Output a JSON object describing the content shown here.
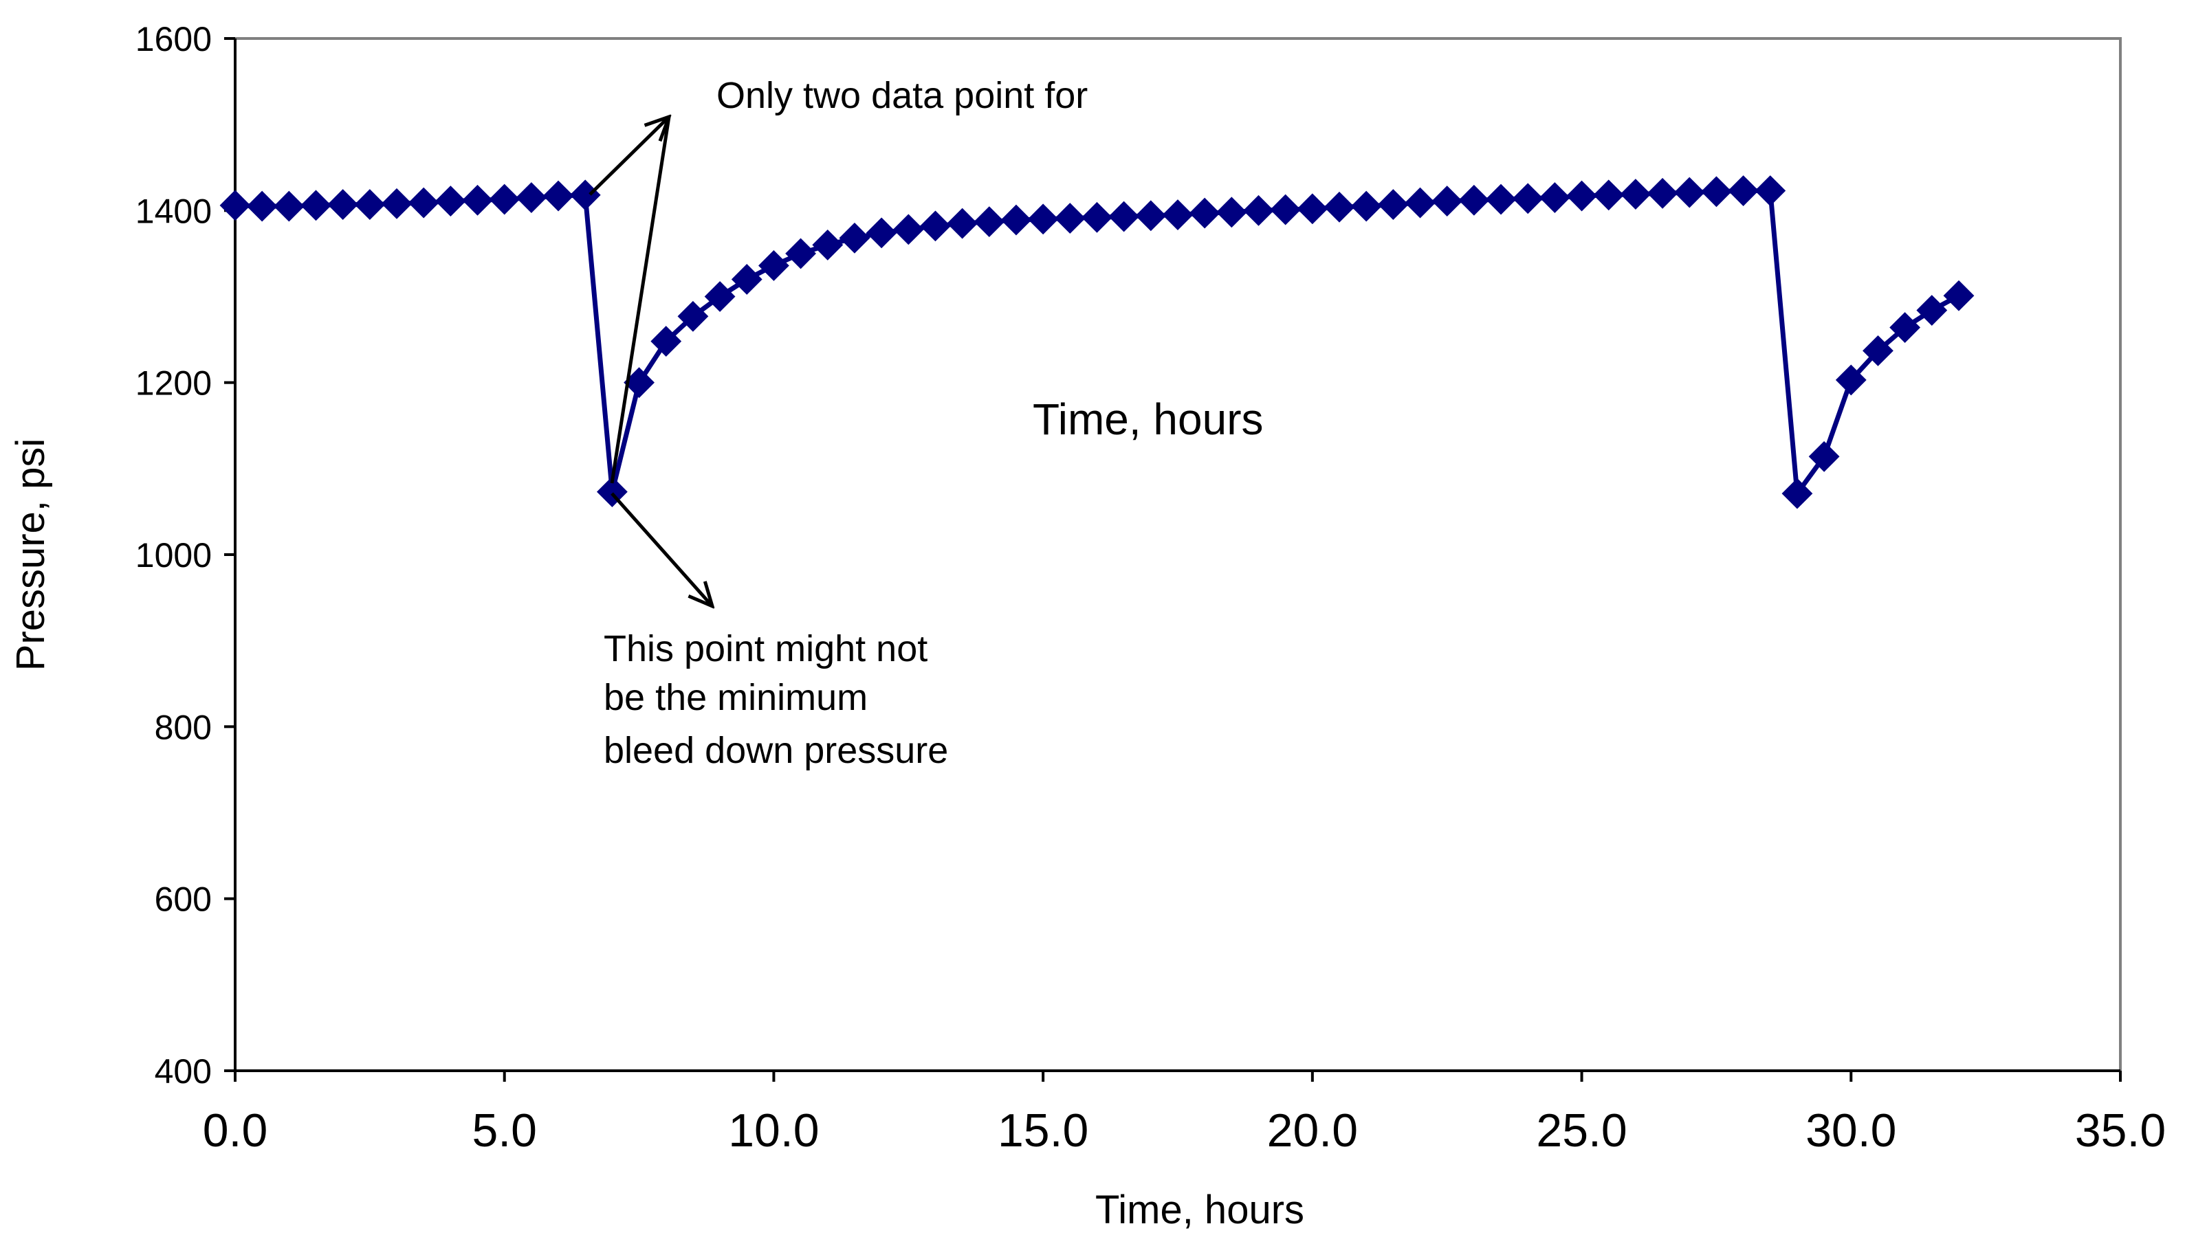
{
  "chart_data": {
    "type": "line",
    "title": "",
    "xlabel": "Time, hours",
    "ylabel": "Pressure, psi",
    "xlim": [
      0,
      35
    ],
    "ylim": [
      400,
      1600
    ],
    "xticks": [
      "0.0",
      "5.0",
      "10.0",
      "15.0",
      "20.0",
      "25.0",
      "30.0",
      "35.0"
    ],
    "yticks": [
      "400",
      "600",
      "800",
      "1000",
      "1200",
      "1400",
      "1600"
    ],
    "grid": false,
    "legend": "none",
    "series": [
      {
        "name": "Pressure",
        "color": "#000080",
        "marker": "diamond",
        "points": [
          [
            0.0,
            1406
          ],
          [
            0.5,
            1405
          ],
          [
            1.0,
            1405
          ],
          [
            1.5,
            1406
          ],
          [
            2.0,
            1407
          ],
          [
            2.5,
            1407
          ],
          [
            3.0,
            1408
          ],
          [
            3.5,
            1409
          ],
          [
            4.0,
            1411
          ],
          [
            4.5,
            1412
          ],
          [
            5.0,
            1413
          ],
          [
            5.5,
            1415
          ],
          [
            6.0,
            1417
          ],
          [
            6.5,
            1418
          ],
          [
            7.0,
            1073
          ],
          [
            7.5,
            1200
          ],
          [
            8.0,
            1248
          ],
          [
            8.5,
            1277
          ],
          [
            9.0,
            1300
          ],
          [
            9.5,
            1320
          ],
          [
            10.0,
            1336
          ],
          [
            10.5,
            1350
          ],
          [
            11.0,
            1360
          ],
          [
            11.5,
            1368
          ],
          [
            12.0,
            1374
          ],
          [
            12.5,
            1378
          ],
          [
            13.0,
            1382
          ],
          [
            13.5,
            1385
          ],
          [
            14.0,
            1387
          ],
          [
            14.5,
            1389
          ],
          [
            15.0,
            1390
          ],
          [
            15.5,
            1391
          ],
          [
            16.0,
            1392
          ],
          [
            16.5,
            1393
          ],
          [
            17.0,
            1394
          ],
          [
            17.5,
            1395
          ],
          [
            18.0,
            1397
          ],
          [
            18.5,
            1398
          ],
          [
            19.0,
            1400
          ],
          [
            19.5,
            1401
          ],
          [
            20.0,
            1402
          ],
          [
            20.5,
            1404
          ],
          [
            21.0,
            1405
          ],
          [
            21.5,
            1407
          ],
          [
            22.0,
            1409
          ],
          [
            22.5,
            1411
          ],
          [
            23.0,
            1412
          ],
          [
            23.5,
            1413
          ],
          [
            24.0,
            1414
          ],
          [
            24.5,
            1415
          ],
          [
            25.0,
            1417
          ],
          [
            25.5,
            1418
          ],
          [
            26.0,
            1419
          ],
          [
            26.5,
            1420
          ],
          [
            27.0,
            1421
          ],
          [
            27.5,
            1422
          ],
          [
            28.0,
            1423
          ],
          [
            28.5,
            1423
          ],
          [
            29.0,
            1071
          ],
          [
            29.5,
            1114
          ],
          [
            30.0,
            1203
          ],
          [
            30.5,
            1237
          ],
          [
            31.0,
            1264
          ],
          [
            31.5,
            1284
          ],
          [
            32.0,
            1301
          ]
        ]
      }
    ],
    "annotations": [
      {
        "id": "two-points",
        "lines": [
          "Only two data point for"
        ]
      },
      {
        "id": "min-point",
        "lines": [
          "This point might not",
          "be the minimum",
          "bleed down pressure"
        ]
      },
      {
        "id": "mid-label",
        "lines": [
          "Time, hours"
        ]
      }
    ]
  }
}
